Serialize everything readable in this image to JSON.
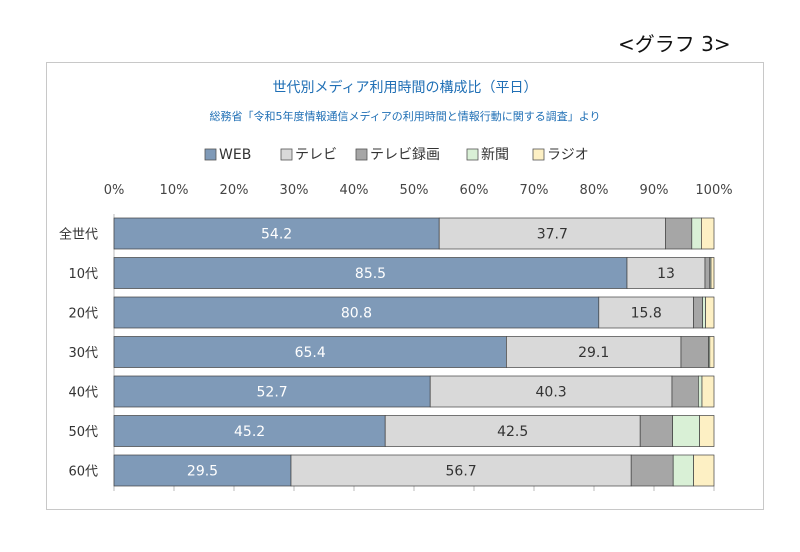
{
  "graph_label": "<グラフ 3>",
  "chart_data": {
    "type": "bar",
    "orientation": "horizontal",
    "stacked": true,
    "title": "世代別メディア利用時間の構成比（平日）",
    "subtitle": "総務省「令和5年度情報通信メディアの利用時間と情報行動に関する調査」より",
    "categories": [
      "全世代",
      "10代",
      "20代",
      "30代",
      "40代",
      "50代",
      "60代"
    ],
    "xlim": [
      0,
      100
    ],
    "xticks": [
      "0%",
      "10%",
      "20%",
      "30%",
      "40%",
      "50%",
      "60%",
      "70%",
      "80%",
      "90%",
      "100%"
    ],
    "legend_position": "top",
    "series": [
      {
        "name": "WEB",
        "color": "#7f9ab8",
        "label_color": "#ffffff",
        "show_labels": true,
        "values": [
          54.2,
          85.5,
          80.8,
          65.4,
          52.7,
          45.2,
          29.5
        ]
      },
      {
        "name": "テレビ",
        "color": "#d9d9d9",
        "label_color": "#333333",
        "show_labels": true,
        "values": [
          37.7,
          13,
          15.8,
          29.1,
          40.3,
          42.5,
          56.7
        ]
      },
      {
        "name": "テレビ録画",
        "color": "#a6a6a6",
        "label_color": "#333333",
        "show_labels": false,
        "values": [
          4.4,
          0.8,
          1.5,
          4.6,
          4.4,
          5.4,
          7.0
        ]
      },
      {
        "name": "新聞",
        "color": "#d9f0d6",
        "label_color": "#333333",
        "show_labels": false,
        "values": [
          1.6,
          0.2,
          0.5,
          0.2,
          0.6,
          4.5,
          3.4
        ]
      },
      {
        "name": "ラジオ",
        "color": "#fdf0c4",
        "label_color": "#333333",
        "show_labels": false,
        "values": [
          2.1,
          0.5,
          1.4,
          0.7,
          2.0,
          2.4,
          3.4
        ]
      }
    ]
  }
}
